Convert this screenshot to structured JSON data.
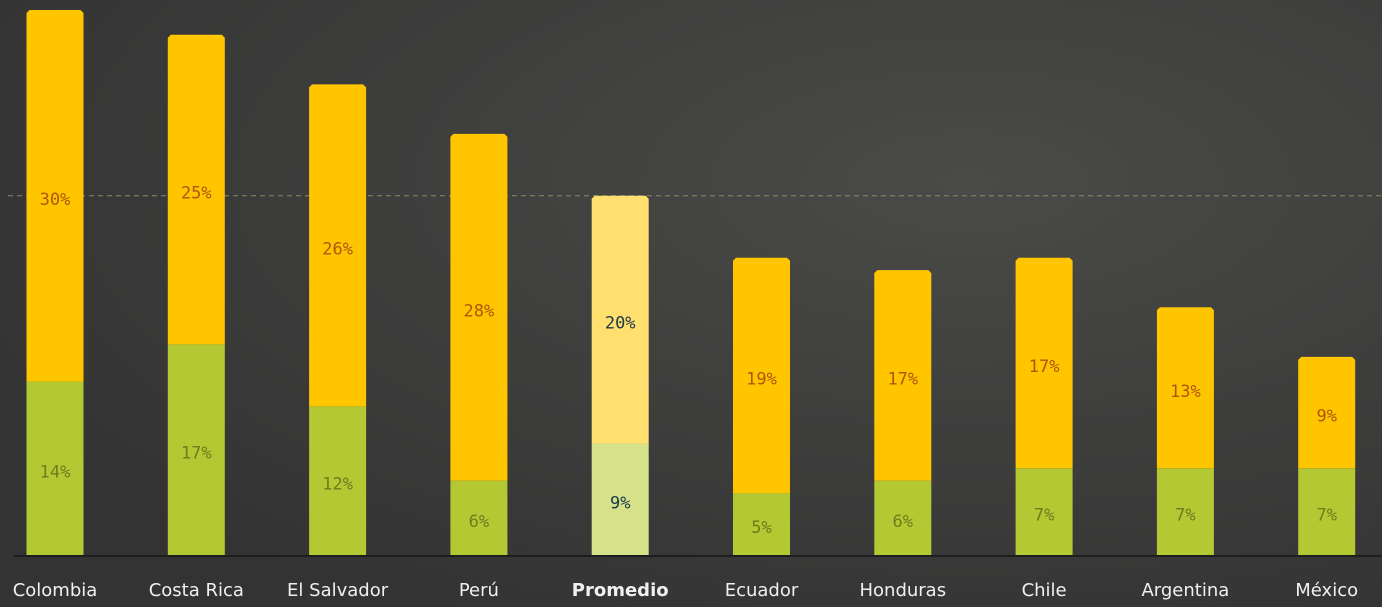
{
  "chart_data": {
    "type": "stacked-bar",
    "categories": [
      "Colombia",
      "Costa Rica",
      "El Salvador",
      "Perú",
      "Promedio",
      "Ecuador",
      "Honduras",
      "Chile",
      "Argentina",
      "México"
    ],
    "series": [
      {
        "color": "#b3c833",
        "highlight_color": "#d6e28a",
        "label_color": "#6e7d1c",
        "values": [
          14,
          17,
          12,
          6,
          9,
          5,
          6,
          7,
          7,
          7
        ],
        "value_labels": [
          "14%",
          "17%",
          "12%",
          "6%",
          "9%",
          "5%",
          "6%",
          "7%",
          "7%",
          "7%"
        ]
      },
      {
        "color": "#ffc600",
        "highlight_color": "#ffdf6e",
        "label_color": "#b0550a",
        "values": [
          30,
          25,
          26,
          28,
          20,
          19,
          17,
          17,
          13,
          9
        ],
        "value_labels": [
          "30%",
          "25%",
          "26%",
          "28%",
          "20%",
          "19%",
          "17%",
          "17%",
          "13%",
          "9%"
        ]
      }
    ],
    "highlight": 4,
    "highlight_label_color": "#1d3a48",
    "ylim": [
      0,
      44
    ]
  }
}
